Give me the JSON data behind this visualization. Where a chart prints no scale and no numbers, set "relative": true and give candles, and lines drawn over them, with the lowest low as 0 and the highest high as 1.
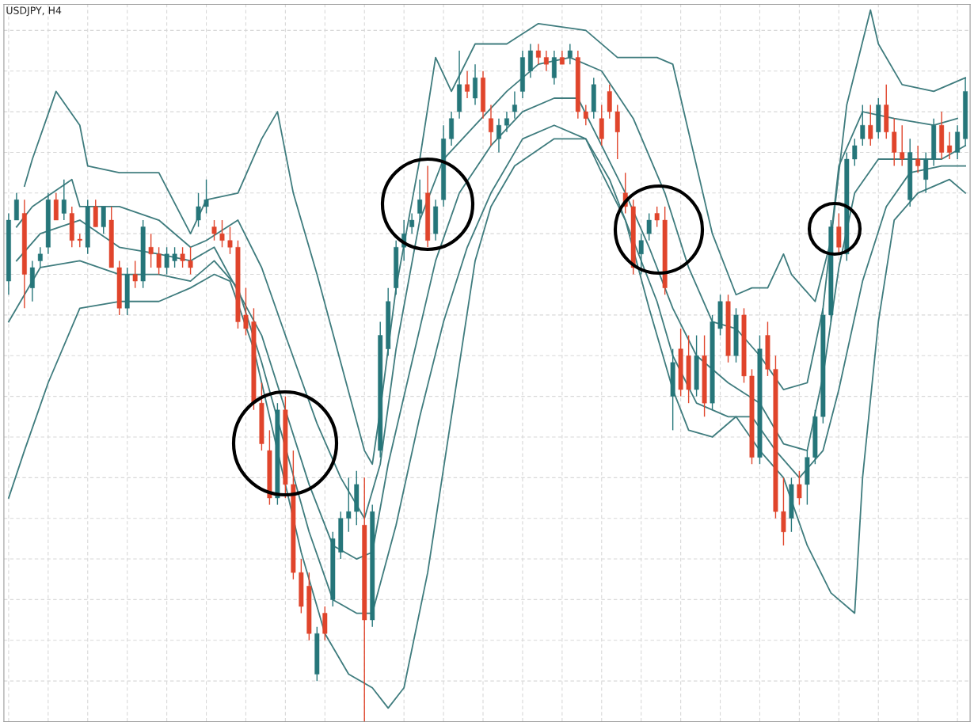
{
  "chart_data": {
    "type": "candlestick",
    "title": "USDJPY, H4",
    "relative": true,
    "grid": true,
    "tick_labels": false,
    "categories": [
      null,
      null,
      null,
      null,
      null,
      null,
      null,
      null,
      null,
      null,
      null,
      null,
      null,
      null,
      null,
      null,
      null,
      null,
      null,
      null,
      null,
      null,
      null,
      null,
      null,
      null,
      null,
      null,
      null,
      null,
      null,
      null,
      null,
      null,
      null,
      null,
      null,
      null,
      null,
      null,
      null,
      null,
      null,
      null,
      null,
      null,
      null,
      null,
      null,
      null,
      null,
      null,
      null,
      null,
      null,
      null,
      null,
      null,
      null,
      null,
      null,
      null,
      null,
      null,
      null,
      null,
      null,
      null,
      null,
      null,
      null,
      null,
      null,
      null,
      null,
      null,
      null,
      null,
      null,
      null,
      null,
      null,
      null,
      null,
      null,
      null,
      null,
      null,
      null,
      null,
      null,
      null,
      null,
      null,
      null,
      null,
      null,
      null,
      null,
      null,
      null,
      null,
      null,
      null,
      null,
      null,
      null,
      null,
      null,
      null,
      null,
      null,
      null,
      null,
      null,
      null,
      null,
      null,
      null,
      null,
      null,
      null
    ],
    "ohlc": [
      [
        0.65,
        0.75,
        0.63,
        0.74
      ],
      [
        0.74,
        0.78,
        0.74,
        0.77
      ],
      [
        0.75,
        0.77,
        0.61,
        0.66
      ],
      [
        0.64,
        0.68,
        0.62,
        0.67
      ],
      [
        0.68,
        0.7,
        0.67,
        0.69
      ],
      [
        0.7,
        0.78,
        0.69,
        0.77
      ],
      [
        0.77,
        0.78,
        0.74,
        0.74
      ],
      [
        0.75,
        0.8,
        0.74,
        0.77
      ],
      [
        0.75,
        0.76,
        0.7,
        0.71
      ],
      [
        0.71,
        0.72,
        0.7,
        0.71
      ],
      [
        0.7,
        0.77,
        0.69,
        0.76
      ],
      [
        0.76,
        0.77,
        0.73,
        0.73
      ],
      [
        0.73,
        0.76,
        0.72,
        0.76
      ],
      [
        0.74,
        0.76,
        0.67,
        0.67
      ],
      [
        0.67,
        0.68,
        0.6,
        0.61
      ],
      [
        0.61,
        0.67,
        0.6,
        0.66
      ],
      [
        0.66,
        0.68,
        0.64,
        0.65
      ],
      [
        0.65,
        0.74,
        0.64,
        0.73
      ],
      [
        0.7,
        0.72,
        0.67,
        0.69
      ],
      [
        0.69,
        0.7,
        0.66,
        0.67
      ],
      [
        0.67,
        0.7,
        0.66,
        0.69
      ],
      [
        0.68,
        0.7,
        0.67,
        0.69
      ],
      [
        0.69,
        0.7,
        0.67,
        0.68
      ],
      [
        0.68,
        0.7,
        0.66,
        0.67
      ],
      [
        0.74,
        0.78,
        0.73,
        0.76
      ],
      [
        0.76,
        0.8,
        0.75,
        0.77
      ],
      [
        0.73,
        0.74,
        0.71,
        0.72
      ],
      [
        0.72,
        0.74,
        0.7,
        0.71
      ],
      [
        0.71,
        0.73,
        0.69,
        0.7
      ],
      [
        0.7,
        0.71,
        0.58,
        0.59
      ],
      [
        0.6,
        0.64,
        0.57,
        0.58
      ],
      [
        0.59,
        0.61,
        0.46,
        0.47
      ],
      [
        0.47,
        0.5,
        0.4,
        0.41
      ],
      [
        0.4,
        0.43,
        0.32,
        0.33
      ],
      [
        0.33,
        0.47,
        0.32,
        0.46
      ],
      [
        0.46,
        0.48,
        0.33,
        0.35
      ],
      [
        0.35,
        0.4,
        0.21,
        0.22
      ],
      [
        0.22,
        0.24,
        0.16,
        0.17
      ],
      [
        0.2,
        0.22,
        0.12,
        0.13
      ],
      [
        0.07,
        0.14,
        0.06,
        0.13
      ],
      [
        0.16,
        0.17,
        0.12,
        0.13
      ],
      [
        0.18,
        0.28,
        0.17,
        0.27
      ],
      [
        0.25,
        0.31,
        0.24,
        0.3
      ],
      [
        0.3,
        0.36,
        0.28,
        0.31
      ],
      [
        0.31,
        0.37,
        0.29,
        0.35
      ],
      [
        0.29,
        0.36,
        0.0,
        0.15
      ],
      [
        0.15,
        0.32,
        0.14,
        0.31
      ],
      [
        0.4,
        0.59,
        0.39,
        0.57
      ],
      [
        0.55,
        0.64,
        0.54,
        0.62
      ],
      [
        0.64,
        0.71,
        0.63,
        0.7
      ],
      [
        0.7,
        0.74,
        0.68,
        0.72
      ],
      [
        0.73,
        0.75,
        0.72,
        0.74
      ],
      [
        0.75,
        0.8,
        0.74,
        0.77
      ],
      [
        0.78,
        0.82,
        0.7,
        0.71
      ],
      [
        0.72,
        0.77,
        0.71,
        0.76
      ],
      [
        0.77,
        0.88,
        0.76,
        0.86
      ],
      [
        0.86,
        0.9,
        0.85,
        0.89
      ],
      [
        0.9,
        0.99,
        0.89,
        0.94
      ],
      [
        0.94,
        0.96,
        0.92,
        0.93
      ],
      [
        0.92,
        0.97,
        0.91,
        0.95
      ],
      [
        0.95,
        0.96,
        0.89,
        0.9
      ],
      [
        0.89,
        0.91,
        0.85,
        0.87
      ],
      [
        0.86,
        0.89,
        0.84,
        0.88
      ],
      [
        0.88,
        0.9,
        0.87,
        0.89
      ],
      [
        0.9,
        0.93,
        0.89,
        0.91
      ],
      [
        0.93,
        0.99,
        0.92,
        0.98
      ],
      [
        0.96,
        1.0,
        0.95,
        0.99
      ],
      [
        0.99,
        1.0,
        0.97,
        0.98
      ],
      [
        0.98,
        0.99,
        0.96,
        0.97
      ],
      [
        0.95,
        0.99,
        0.94,
        0.98
      ],
      [
        0.98,
        0.99,
        0.97,
        0.97
      ],
      [
        0.98,
        1.0,
        0.97,
        0.99
      ],
      [
        0.98,
        0.99,
        0.89,
        0.9
      ],
      [
        0.9,
        0.91,
        0.88,
        0.89
      ],
      [
        0.9,
        0.95,
        0.89,
        0.94
      ],
      [
        0.89,
        0.91,
        0.85,
        0.86
      ],
      [
        0.93,
        0.94,
        0.89,
        0.9
      ],
      [
        0.9,
        0.91,
        0.83,
        0.87
      ],
      [
        0.78,
        0.81,
        0.75,
        0.76
      ],
      [
        0.76,
        0.77,
        0.66,
        0.67
      ],
      [
        0.69,
        0.72,
        0.66,
        0.71
      ],
      [
        0.72,
        0.75,
        0.71,
        0.74
      ],
      [
        0.75,
        0.76,
        0.73,
        0.74
      ],
      [
        0.74,
        0.76,
        0.63,
        0.64
      ],
      [
        0.48,
        0.55,
        0.43,
        0.53
      ],
      [
        0.55,
        0.58,
        0.48,
        0.49
      ],
      [
        0.54,
        0.57,
        0.47,
        0.49
      ],
      [
        0.49,
        0.57,
        0.48,
        0.54
      ],
      [
        0.54,
        0.57,
        0.45,
        0.47
      ],
      [
        0.47,
        0.6,
        0.46,
        0.59
      ],
      [
        0.58,
        0.63,
        0.57,
        0.62
      ],
      [
        0.62,
        0.63,
        0.53,
        0.54
      ],
      [
        0.54,
        0.61,
        0.53,
        0.6
      ],
      [
        0.6,
        0.61,
        0.5,
        0.51
      ],
      [
        0.51,
        0.52,
        0.38,
        0.39
      ],
      [
        0.39,
        0.57,
        0.38,
        0.55
      ],
      [
        0.57,
        0.59,
        0.51,
        0.52
      ],
      [
        0.52,
        0.54,
        0.3,
        0.31
      ],
      [
        0.31,
        0.36,
        0.26,
        0.28
      ],
      [
        0.3,
        0.36,
        0.28,
        0.35
      ],
      [
        0.35,
        0.37,
        0.32,
        0.33
      ],
      [
        0.35,
        0.4,
        0.32,
        0.39
      ],
      [
        0.39,
        0.46,
        0.38,
        0.45
      ],
      [
        0.45,
        0.61,
        0.44,
        0.6
      ],
      [
        0.6,
        0.74,
        0.59,
        0.73
      ],
      [
        0.73,
        0.75,
        0.69,
        0.7
      ],
      [
        0.69,
        0.84,
        0.68,
        0.83
      ],
      [
        0.83,
        0.86,
        0.82,
        0.85
      ],
      [
        0.86,
        0.91,
        0.85,
        0.88
      ],
      [
        0.88,
        0.91,
        0.85,
        0.86
      ],
      [
        0.87,
        0.92,
        0.86,
        0.91
      ],
      [
        0.91,
        0.94,
        0.86,
        0.87
      ],
      [
        0.87,
        0.89,
        0.82,
        0.84
      ],
      [
        0.84,
        0.88,
        0.82,
        0.83
      ],
      [
        0.77,
        0.86,
        0.76,
        0.84
      ],
      [
        0.83,
        0.85,
        0.81,
        0.82
      ],
      [
        0.8,
        0.84,
        0.78,
        0.83
      ],
      [
        0.83,
        0.89,
        0.82,
        0.88
      ],
      [
        0.88,
        0.9,
        0.83,
        0.84
      ],
      [
        0.85,
        0.87,
        0.83,
        0.84
      ],
      [
        0.84,
        0.88,
        0.83,
        0.87
      ],
      [
        0.86,
        0.95,
        0.85,
        0.93
      ]
    ],
    "colors": [
      "#26767a",
      "#26767a",
      "#e0452c",
      "#26767a",
      "#26767a",
      "#26767a",
      "#e0452c",
      "#26767a",
      "#e0452c",
      "#e0452c",
      "#26767a",
      "#e0452c",
      "#26767a",
      "#e0452c",
      "#e0452c",
      "#26767a",
      "#e0452c",
      "#26767a",
      "#e0452c",
      "#e0452c",
      "#26767a",
      "#26767a",
      "#e0452c",
      "#e0452c",
      "#26767a",
      "#26767a",
      "#e0452c",
      "#e0452c",
      "#e0452c",
      "#e0452c",
      "#e0452c",
      "#e0452c",
      "#e0452c",
      "#e0452c",
      "#26767a",
      "#e0452c",
      "#e0452c",
      "#e0452c",
      "#e0452c",
      "#26767a",
      "#e0452c",
      "#26767a",
      "#26767a",
      "#26767a",
      "#26767a",
      "#e0452c",
      "#26767a",
      "#26767a",
      "#26767a",
      "#26767a",
      "#26767a",
      "#26767a",
      "#26767a",
      "#e0452c",
      "#26767a",
      "#26767a",
      "#26767a",
      "#26767a",
      "#e0452c",
      "#26767a",
      "#e0452c",
      "#e0452c",
      "#26767a",
      "#26767a",
      "#26767a",
      "#26767a",
      "#26767a",
      "#e0452c",
      "#e0452c",
      "#26767a",
      "#e0452c",
      "#26767a",
      "#e0452c",
      "#e0452c",
      "#26767a",
      "#e0452c",
      "#e0452c",
      "#e0452c",
      "#e0452c",
      "#e0452c",
      "#26767a",
      "#26767a",
      "#e0452c",
      "#e0452c",
      "#26767a",
      "#e0452c",
      "#e0452c",
      "#26767a",
      "#e0452c",
      "#26767a",
      "#26767a",
      "#e0452c",
      "#26767a",
      "#e0452c",
      "#e0452c",
      "#26767a",
      "#e0452c",
      "#e0452c",
      "#e0452c",
      "#26767a",
      "#e0452c",
      "#26767a",
      "#26767a",
      "#26767a",
      "#26767a",
      "#e0452c",
      "#26767a",
      "#26767a",
      "#26767a",
      "#e0452c",
      "#26767a",
      "#e0452c",
      "#e0452c",
      "#e0452c",
      "#26767a",
      "#e0452c",
      "#26767a",
      "#26767a",
      "#e0452c",
      "#e0452c",
      "#26767a",
      "#26767a"
    ],
    "series": [
      {
        "type": "line",
        "color": "#3f7c7e",
        "values": [
          null,
          null,
          0.79,
          0.83,
          null,
          null,
          0.93,
          null,
          null,
          0.88,
          0.82,
          null,
          null,
          null,
          0.81,
          null,
          null,
          null,
          null,
          0.81,
          null,
          null,
          null,
          0.72,
          null,
          0.77,
          null,
          null,
          null,
          0.78,
          null,
          null,
          0.86,
          null,
          0.9,
          null,
          0.78,
          null,
          null,
          0.66,
          null,
          null,
          0.53,
          null,
          null,
          0.4,
          0.38,
          0.46,
          null,
          0.64,
          null,
          null,
          0.83,
          null,
          0.98,
          null,
          0.93,
          null,
          null,
          1.0,
          null,
          null,
          null,
          1.0,
          null,
          null,
          null,
          1.03,
          null,
          null,
          null,
          null,
          null,
          1.02,
          null,
          null,
          null,
          0.98,
          null,
          null,
          null,
          null,
          0.98,
          null,
          0.97,
          null,
          0.87,
          null,
          null,
          0.72,
          null,
          0.66,
          0.63,
          null,
          0.64,
          null,
          0.64,
          null,
          0.69,
          0.66,
          null,
          null,
          0.62,
          null,
          0.71,
          null,
          0.91,
          null,
          null,
          1.05,
          1.0,
          null,
          null,
          0.94,
          null,
          null,
          null,
          0.93,
          null,
          null,
          null,
          0.95
        ]
      },
      {
        "type": "line",
        "color": "#3f7c7e",
        "values": [
          null,
          0.73,
          null,
          0.76,
          null,
          null,
          null,
          null,
          0.8,
          0.76,
          null,
          null,
          null,
          null,
          0.76,
          null,
          null,
          null,
          null,
          0.74,
          null,
          null,
          null,
          0.7,
          null,
          0.71,
          null,
          null,
          null,
          0.74,
          null,
          null,
          0.67,
          null,
          null,
          0.57,
          null,
          null,
          null,
          0.44,
          null,
          null,
          0.36,
          null,
          null,
          0.3,
          null,
          0.38,
          null,
          0.55,
          null,
          null,
          0.74,
          null,
          null,
          0.83,
          null,
          null,
          null,
          0.88,
          null,
          null,
          null,
          0.93,
          null,
          null,
          null,
          0.97,
          null,
          null,
          null,
          0.98,
          null,
          null,
          null,
          0.96,
          null,
          null,
          null,
          0.89,
          null,
          null,
          null,
          0.78,
          null,
          null,
          0.67,
          null,
          null,
          0.59,
          null,
          null,
          0.58,
          null,
          null,
          0.54,
          null,
          null,
          0.49,
          null,
          null,
          0.5,
          null,
          0.61,
          null,
          0.82,
          null,
          null,
          0.9,
          null,
          null,
          null,
          0.89,
          null,
          null,
          null,
          null,
          0.88,
          null,
          null,
          0.89,
          null
        ]
      },
      {
        "type": "line",
        "color": "#3f7c7e",
        "values": [
          null,
          0.68,
          null,
          null,
          0.72,
          null,
          null,
          null,
          null,
          0.74,
          null,
          null,
          null,
          null,
          0.7,
          null,
          null,
          null,
          null,
          0.69,
          null,
          null,
          null,
          0.68,
          null,
          null,
          0.7,
          null,
          null,
          null,
          null,
          null,
          0.57,
          null,
          null,
          null,
          null,
          null,
          0.35,
          null,
          null,
          0.26,
          null,
          null,
          0.24,
          null,
          0.25,
          null,
          0.38,
          null,
          null,
          0.53,
          null,
          null,
          0.68,
          null,
          null,
          0.78,
          null,
          null,
          null,
          0.85,
          null,
          null,
          null,
          0.9,
          null,
          null,
          null,
          0.92,
          null,
          null,
          0.92,
          null,
          null,
          null,
          null,
          null,
          0.78,
          null,
          null,
          0.7,
          null,
          null,
          0.61,
          null,
          null,
          0.54,
          null,
          null,
          null,
          0.5,
          null,
          null,
          null,
          0.47,
          null,
          null,
          0.41,
          null,
          null,
          0.4,
          null,
          0.51,
          null,
          0.67,
          null,
          0.78,
          null,
          null,
          0.83,
          null,
          null,
          null,
          0.83,
          null,
          null,
          null,
          0.83,
          null,
          null,
          0.85
        ]
      },
      {
        "type": "line",
        "color": "#3f7c7e",
        "values": [
          0.59,
          null,
          null,
          null,
          0.67,
          null,
          null,
          null,
          null,
          0.68,
          null,
          null,
          null,
          null,
          0.66,
          null,
          null,
          null,
          null,
          0.66,
          null,
          null,
          null,
          0.65,
          null,
          null,
          0.68,
          null,
          null,
          0.64,
          null,
          null,
          0.53,
          null,
          null,
          null,
          null,
          null,
          0.28,
          null,
          null,
          0.18,
          null,
          null,
          0.16,
          null,
          0.16,
          null,
          null,
          0.29,
          null,
          null,
          0.45,
          null,
          null,
          0.59,
          null,
          null,
          0.7,
          null,
          null,
          0.78,
          null,
          null,
          null,
          0.86,
          null,
          null,
          null,
          0.88,
          null,
          null,
          null,
          0.86,
          null,
          null,
          0.8,
          null,
          null,
          0.71,
          null,
          null,
          0.62,
          null,
          0.54,
          null,
          null,
          0.47,
          null,
          null,
          null,
          0.45,
          null,
          null,
          0.45,
          null,
          null,
          0.4,
          null,
          null,
          0.36,
          null,
          null,
          0.4,
          null,
          0.49,
          null,
          null,
          0.65,
          null,
          null,
          0.76,
          null,
          null,
          0.81,
          null,
          null,
          null,
          0.82,
          null,
          null,
          0.82
        ]
      },
      {
        "type": "line",
        "color": "#3f7c7e",
        "values": [
          0.33,
          null,
          0.4,
          null,
          null,
          0.5,
          null,
          null,
          null,
          0.61,
          null,
          null,
          null,
          null,
          0.62,
          null,
          null,
          null,
          null,
          0.62,
          null,
          null,
          null,
          0.64,
          null,
          null,
          0.66,
          null,
          0.65,
          null,
          null,
          0.55,
          null,
          null,
          0.4,
          null,
          null,
          0.25,
          null,
          null,
          0.13,
          null,
          null,
          0.07,
          null,
          null,
          0.05,
          null,
          0.02,
          null,
          0.05,
          null,
          null,
          0.22,
          null,
          null,
          0.45,
          null,
          null,
          0.68,
          null,
          0.76,
          null,
          null,
          0.82,
          null,
          null,
          null,
          null,
          0.86,
          null,
          null,
          null,
          0.86,
          null,
          0.81,
          null,
          null,
          0.74,
          null,
          null,
          0.61,
          null,
          null,
          0.49,
          null,
          0.43,
          null,
          null,
          0.42,
          null,
          null,
          0.45,
          null,
          null,
          0.4,
          null,
          null,
          0.36,
          null,
          null,
          0.26,
          null,
          null,
          0.19,
          null,
          null,
          0.16,
          0.36,
          null,
          0.59,
          null,
          0.74,
          null,
          null,
          0.78,
          null,
          null,
          null,
          0.8,
          null,
          0.78
        ]
      }
    ]
  }
}
